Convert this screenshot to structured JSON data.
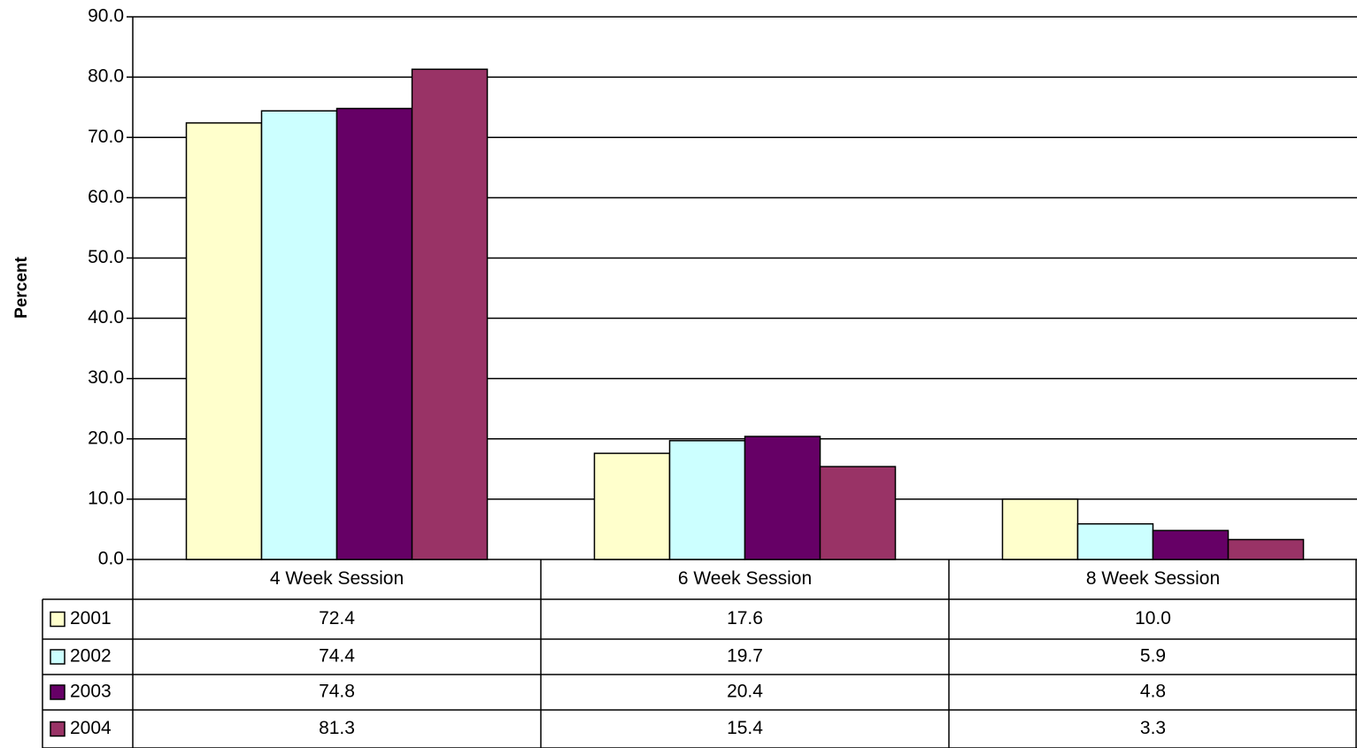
{
  "chart_data": {
    "type": "bar",
    "y_label": "Percent",
    "categories": [
      "4 Week Session",
      "6 Week Session",
      "8 Week Session"
    ],
    "series": [
      {
        "name": "2001",
        "color": "#FFFFCC",
        "values": [
          72.4,
          17.6,
          10
        ],
        "value_labels": [
          "72.4",
          "17.6",
          "10.0"
        ]
      },
      {
        "name": "2002",
        "color": "#CCFFFF",
        "values": [
          74.4,
          19.7,
          5.9
        ],
        "value_labels": [
          "74.4",
          "19.7",
          "5.9"
        ]
      },
      {
        "name": "2003",
        "color": "#660066",
        "values": [
          74.8,
          20.4,
          4.8
        ],
        "value_labels": [
          "74.8",
          "20.4",
          "4.8"
        ]
      },
      {
        "name": "2004",
        "color": "#993366",
        "values": [
          81.3,
          15.4,
          3.3
        ],
        "value_labels": [
          "81.3",
          "15.4",
          "3.3"
        ]
      }
    ],
    "ylim": [
      0,
      90
    ],
    "yticks": [
      {
        "value": 0,
        "label": "0.0"
      },
      {
        "value": 10,
        "label": "10.0"
      },
      {
        "value": 20,
        "label": "20.0"
      },
      {
        "value": 30,
        "label": "30.0"
      },
      {
        "value": 40,
        "label": "40.0"
      },
      {
        "value": 50,
        "label": "50.0"
      },
      {
        "value": 60,
        "label": "60.0"
      },
      {
        "value": 70,
        "label": "70.0"
      },
      {
        "value": 80,
        "label": "80.0"
      },
      {
        "value": 90,
        "label": "90.0"
      }
    ],
    "grid": true,
    "data_table": true
  }
}
